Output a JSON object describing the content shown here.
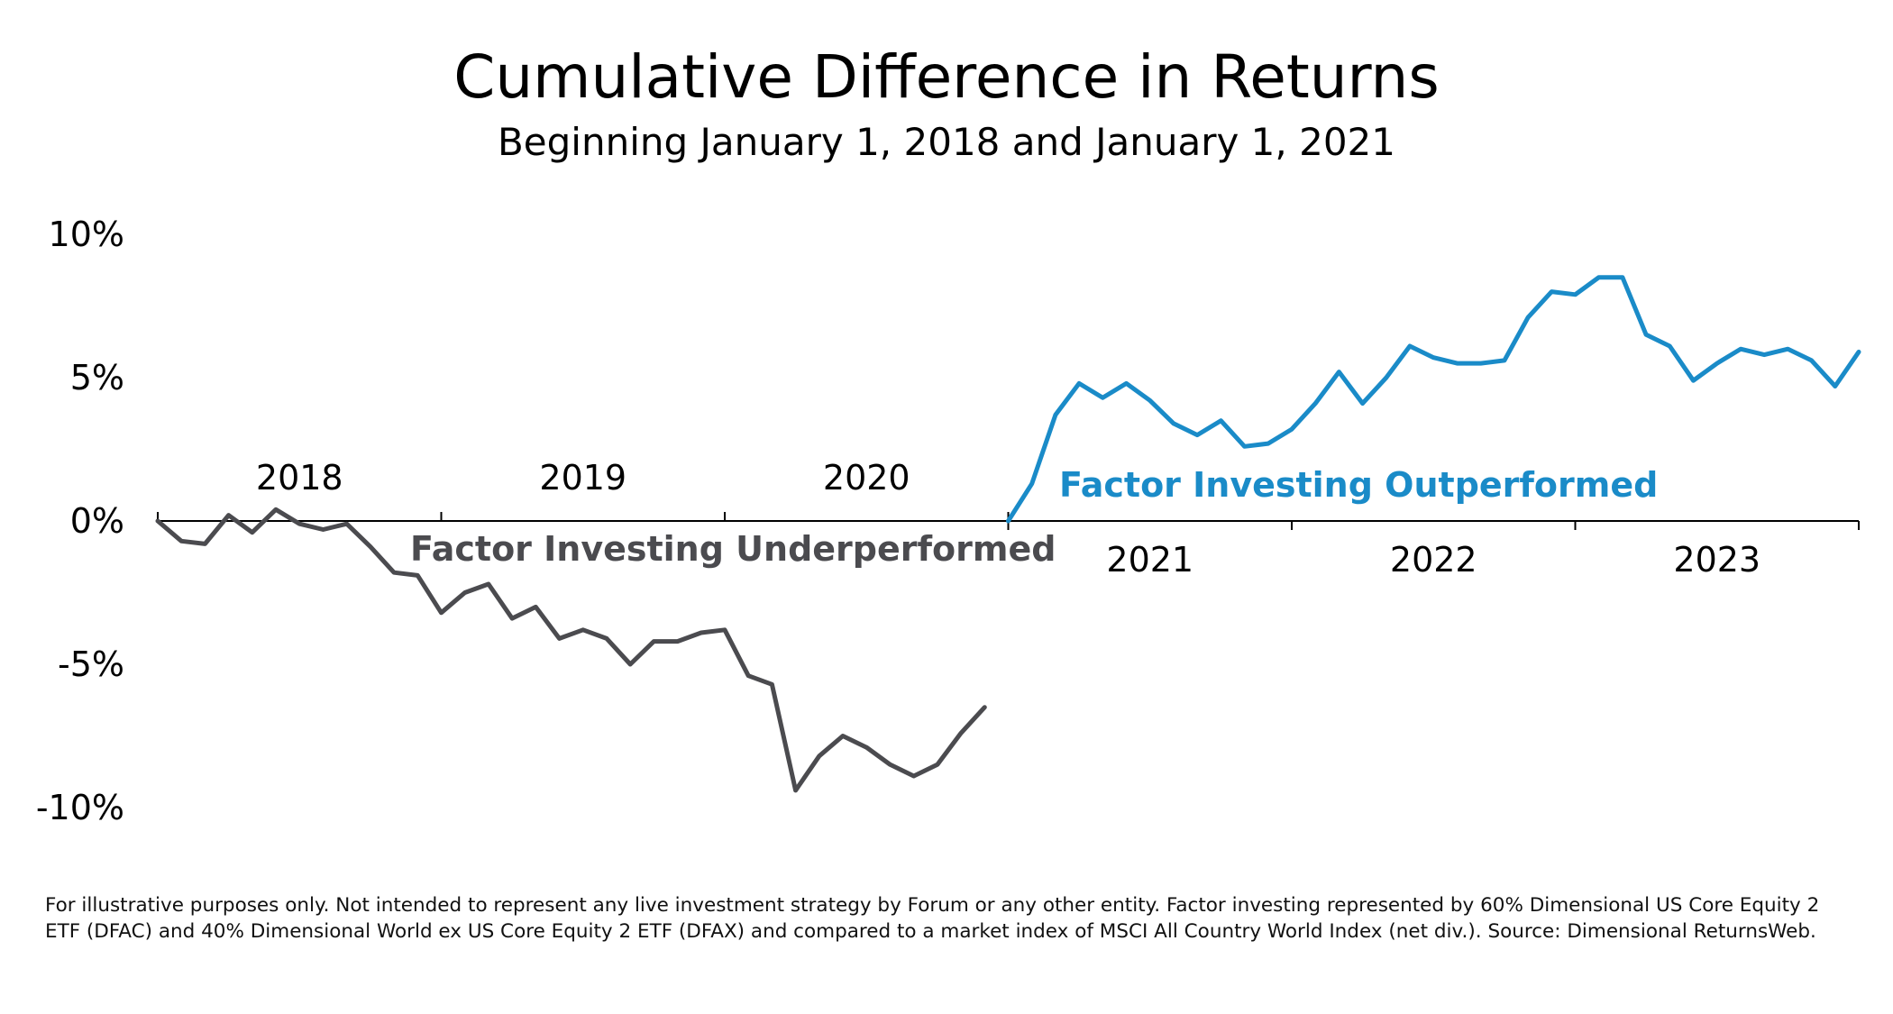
{
  "chart_data": {
    "type": "line",
    "title": "Cumulative Difference in Returns",
    "subtitle": "Beginning January 1, 2018 and January 1, 2021",
    "y_unit": "percent",
    "ylim": [
      -10,
      10
    ],
    "yticks": [
      10,
      5,
      0,
      -5,
      -10
    ],
    "ytick_labels": [
      "10%",
      "5%",
      "0%",
      "-5%",
      "-10%"
    ],
    "grid": false,
    "legend": "none",
    "periods": [
      {
        "name": "",
        "start": "2018-01",
        "end": "2020-12",
        "year_labels": [
          "2018",
          "2019",
          "2020"
        ],
        "year_label_position": "above-axis",
        "annotation": "Factor Investing Underperformed",
        "annotation_color": "#4b4b4f",
        "color": "#4b4b4f",
        "months": [
          "2018-01",
          "2018-02",
          "2018-03",
          "2018-04",
          "2018-05",
          "2018-06",
          "2018-07",
          "2018-08",
          "2018-09",
          "2018-10",
          "2018-11",
          "2018-12",
          "2019-01",
          "2019-02",
          "2019-03",
          "2019-04",
          "2019-05",
          "2019-06",
          "2019-07",
          "2019-08",
          "2019-09",
          "2019-10",
          "2019-11",
          "2019-12",
          "2020-01",
          "2020-02",
          "2020-03",
          "2020-04",
          "2020-05",
          "2020-06",
          "2020-07",
          "2020-08",
          "2020-09",
          "2020-10",
          "2020-11",
          "2020-12"
        ],
        "values": [
          0.0,
          -0.7,
          -0.8,
          0.2,
          -0.4,
          0.4,
          -0.1,
          -0.3,
          -0.1,
          -0.9,
          -1.8,
          -1.9,
          -3.2,
          -2.5,
          -2.2,
          -3.4,
          -3.0,
          -4.1,
          -3.8,
          -4.1,
          -5.0,
          -4.2,
          -4.2,
          -3.9,
          -3.8,
          -5.4,
          -5.7,
          -9.4,
          -8.2,
          -7.5,
          -7.9,
          -8.5,
          -8.9,
          -8.5,
          -7.4,
          -6.5
        ]
      },
      {
        "name": "",
        "start": "2021-01",
        "end": "2023-12",
        "year_labels": [
          "2021",
          "2022",
          "2023"
        ],
        "year_label_position": "below-axis",
        "annotation": "Factor Investing Outperformed",
        "annotation_color": "#1a8bc8",
        "color": "#1a8bc8",
        "months": [
          "2021-01",
          "2021-02",
          "2021-03",
          "2021-04",
          "2021-05",
          "2021-06",
          "2021-07",
          "2021-08",
          "2021-09",
          "2021-10",
          "2021-11",
          "2021-12",
          "2022-01",
          "2022-02",
          "2022-03",
          "2022-04",
          "2022-05",
          "2022-06",
          "2022-07",
          "2022-08",
          "2022-09",
          "2022-10",
          "2022-11",
          "2022-12",
          "2023-01",
          "2023-02",
          "2023-03",
          "2023-04",
          "2023-05",
          "2023-06",
          "2023-07",
          "2023-08",
          "2023-09",
          "2023-10",
          "2023-11",
          "2023-12"
        ],
        "values": [
          0.0,
          1.3,
          3.7,
          4.8,
          4.3,
          4.8,
          4.2,
          3.4,
          3.0,
          3.5,
          2.6,
          2.7,
          3.2,
          4.1,
          5.2,
          4.1,
          5.0,
          6.1,
          5.7,
          5.5,
          5.5,
          5.6,
          7.1,
          8.0,
          7.9,
          8.5,
          8.5,
          6.5,
          6.1,
          4.9,
          5.5,
          6.0,
          5.8,
          6.0,
          5.6,
          4.7
        ]
      }
    ],
    "extra_point_last_period": {
      "month": "2024-01",
      "value": 5.9
    }
  },
  "footnote": "For illustrative purposes only. Not intended to represent any live investment strategy by Forum or any other entity. Factor investing represented by 60% Dimensional US Core Equity 2 ETF (DFAC) and 40% Dimensional World ex US Core Equity 2 ETF (DFAX) and compared to a market index of MSCI All Country World Index (net div.). Source: Dimensional ReturnsWeb."
}
